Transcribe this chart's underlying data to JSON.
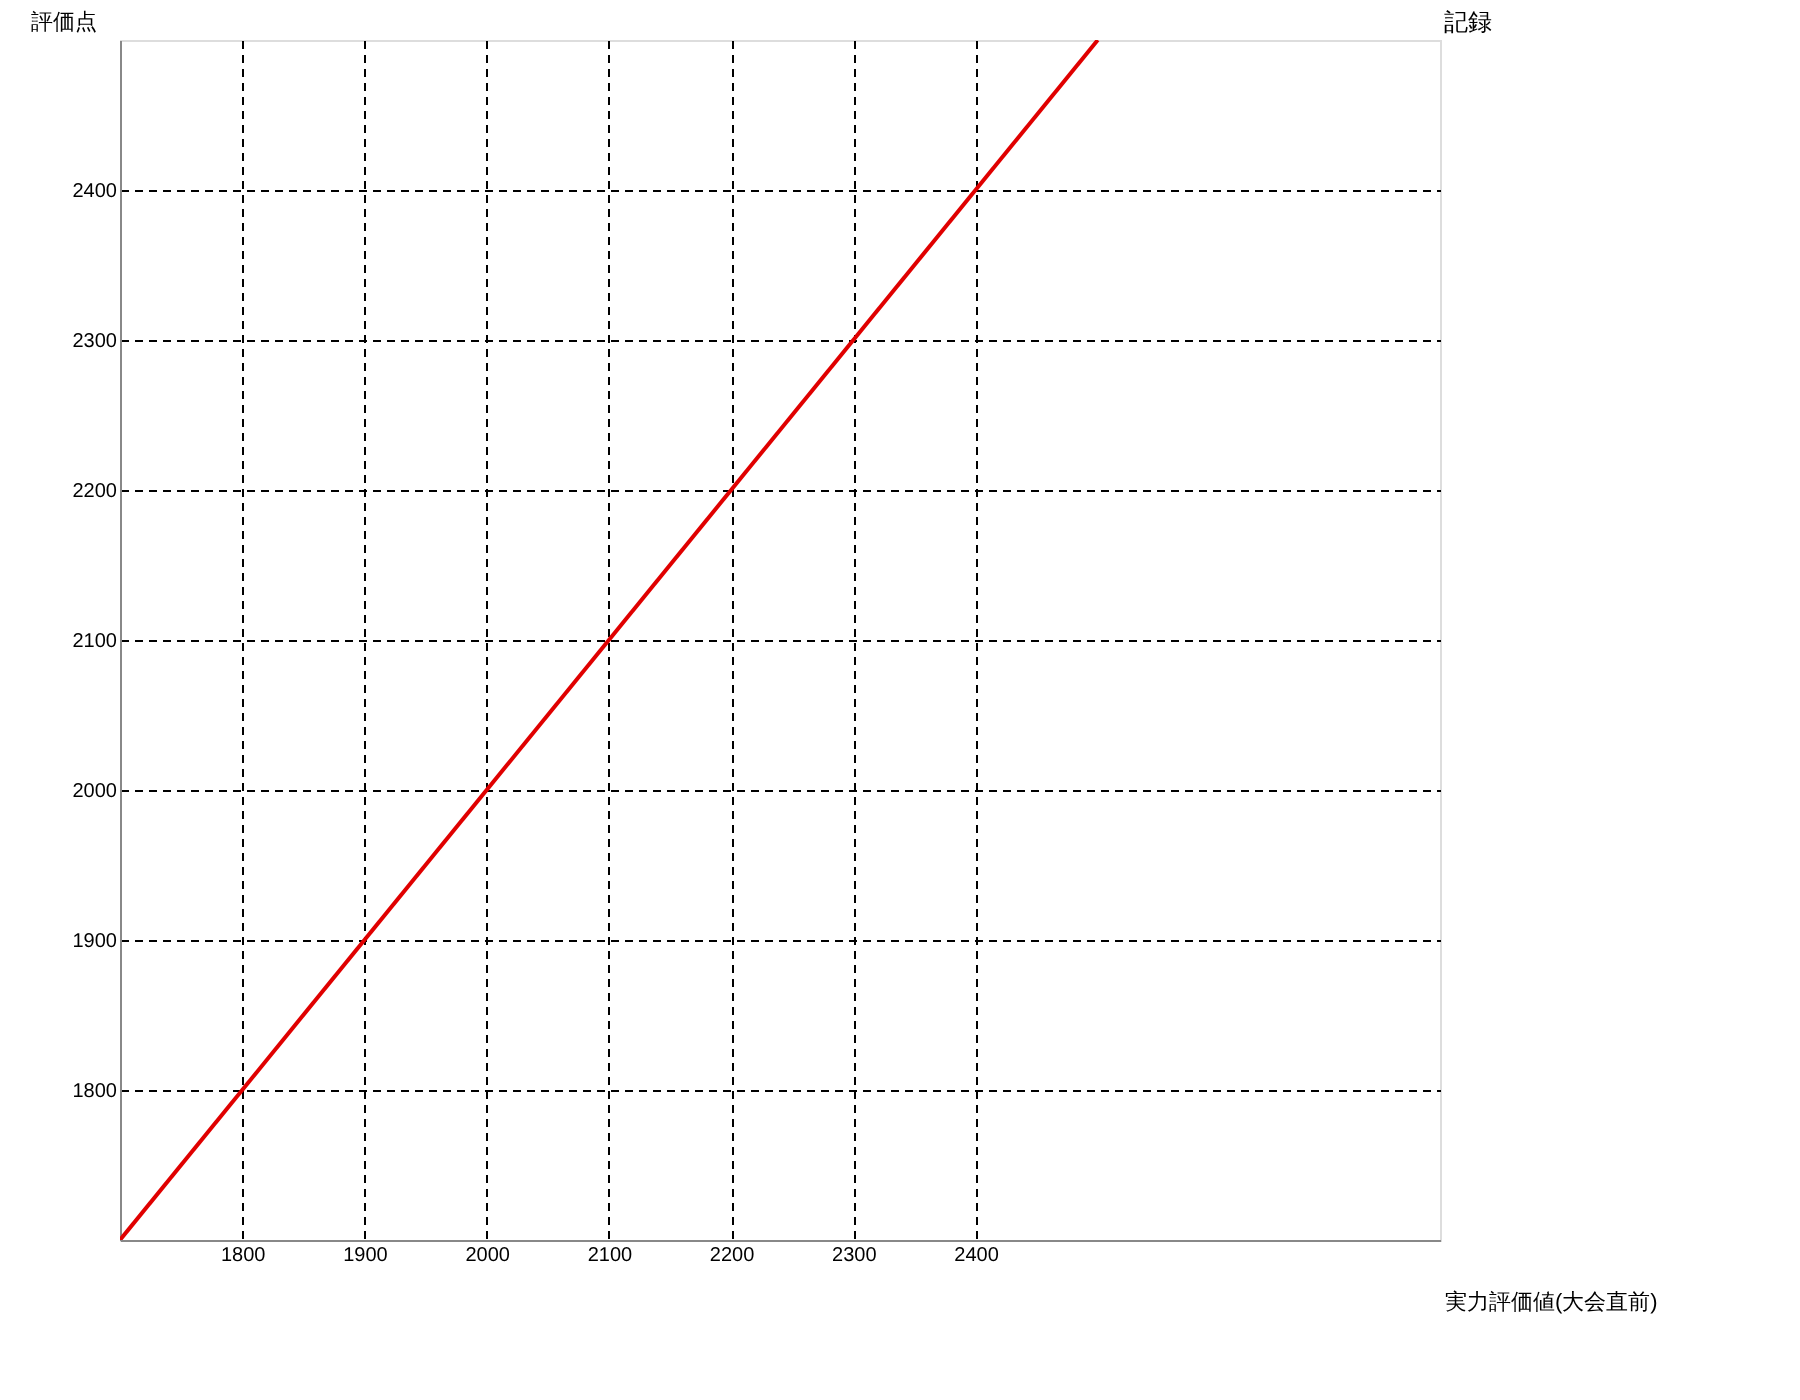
{
  "chart_data": {
    "type": "line",
    "xlabel": "実力評価値(大会直前)",
    "ylabel": "評価点",
    "annotations": [
      "記録"
    ],
    "series": [
      {
        "color": "#e00000",
        "x": [
          1700,
          2500
        ],
        "values": [
          1700,
          2500
        ]
      }
    ],
    "xlim": [
      1700,
      2780
    ],
    "ylim": [
      1700,
      2500
    ],
    "xticks": [
      1800,
      1900,
      2000,
      2100,
      2200,
      2300,
      2400
    ],
    "yticks": [
      1800,
      1900,
      2000,
      2100,
      2200,
      2300,
      2400
    ],
    "grid": true,
    "line_style": "solid",
    "marker": "none"
  }
}
